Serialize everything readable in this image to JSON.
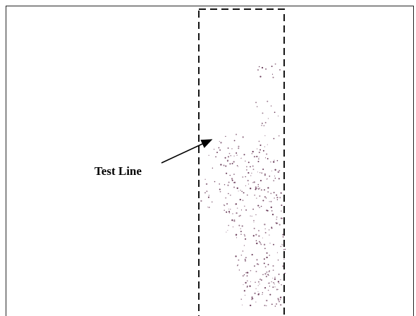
{
  "annotation": {
    "label": "Test Line"
  }
}
